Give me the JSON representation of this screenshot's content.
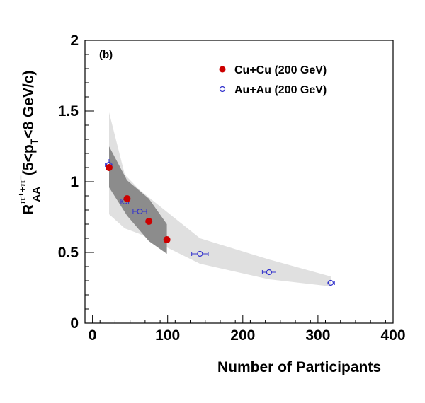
{
  "chart_data": {
    "type": "scatter",
    "panel_label": "(b)",
    "xlabel": "Number of Participants",
    "ylabel": {
      "main": "R",
      "superscript": "π⁺+π⁻",
      "subscript": "AA",
      "range_prefix": " (5<p",
      "range_sub": "T",
      "range_suffix": "<8 GeV/c)"
    },
    "xlim": [
      -10,
      400
    ],
    "ylim": [
      0,
      2
    ],
    "x_ticks": [
      0,
      100,
      200,
      300,
      400
    ],
    "x_tick_labels": [
      "0",
      "100",
      "200",
      "300",
      "400"
    ],
    "y_ticks": [
      0,
      0.5,
      1,
      1.5,
      2
    ],
    "y_tick_labels": [
      "0",
      "0.5",
      "1",
      "1.5",
      "2"
    ],
    "legend_position": "top-right",
    "series": [
      {
        "name": "Cu+Cu (200 GeV)",
        "marker": "filled-circle",
        "color": "#cc0000",
        "points": [
          {
            "x": 22,
            "y": 1.1
          },
          {
            "x": 46,
            "y": 0.88
          },
          {
            "x": 75,
            "y": 0.72
          },
          {
            "x": 99,
            "y": 0.59
          }
        ],
        "systematic_band": {
          "color": "#8c8c8c",
          "upper": [
            [
              22,
              1.25
            ],
            [
              46,
              1.01
            ],
            [
              75,
              0.88
            ],
            [
              99,
              0.7
            ]
          ],
          "lower": [
            [
              22,
              0.96
            ],
            [
              46,
              0.76
            ],
            [
              75,
              0.58
            ],
            [
              99,
              0.49
            ]
          ]
        }
      },
      {
        "name": "Au+Au (200 GeV)",
        "marker": "open-circle",
        "color": "#3333cc",
        "points": [
          {
            "x": 22,
            "y": 1.12,
            "xerr": 5,
            "yerr": 0.04
          },
          {
            "x": 43,
            "y": 0.86,
            "xerr": 5,
            "yerr": 0.02
          },
          {
            "x": 63,
            "y": 0.79,
            "xerr": 9,
            "yerr": 0.02
          },
          {
            "x": 143,
            "y": 0.49,
            "xerr": 11,
            "yerr": 0.01
          },
          {
            "x": 235,
            "y": 0.36,
            "xerr": 9,
            "yerr": 0.01
          },
          {
            "x": 317,
            "y": 0.285,
            "xerr": 5,
            "yerr": 0.01
          }
        ],
        "systematic_band": {
          "color": "#e0e0e0",
          "upper": [
            [
              22,
              1.49
            ],
            [
              43,
              1.05
            ],
            [
              63,
              0.94
            ],
            [
              143,
              0.6
            ],
            [
              235,
              0.45
            ],
            [
              317,
              0.33
            ]
          ],
          "lower": [
            [
              22,
              0.77
            ],
            [
              43,
              0.67
            ],
            [
              63,
              0.63
            ],
            [
              143,
              0.42
            ],
            [
              235,
              0.31
            ],
            [
              317,
              0.26
            ]
          ]
        }
      }
    ]
  }
}
